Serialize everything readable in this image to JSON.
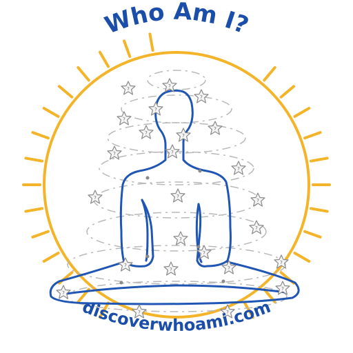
{
  "logo": {
    "title": "Who Am I?",
    "url": "discoverwhoami.com",
    "colors": {
      "title": "#1a4ea8",
      "url": "#1a4ea8",
      "sun": "#f4b429",
      "figure": "#1f55b3",
      "spiral": "#b8b8b8",
      "star_fill": "#f4f4f4",
      "star_stroke": "#8a8a8a"
    },
    "icons": {
      "sun": "sun-ring-icon",
      "figure": "meditating-person-icon",
      "star": "star-icon",
      "spiral": "energy-spiral-icon"
    }
  }
}
